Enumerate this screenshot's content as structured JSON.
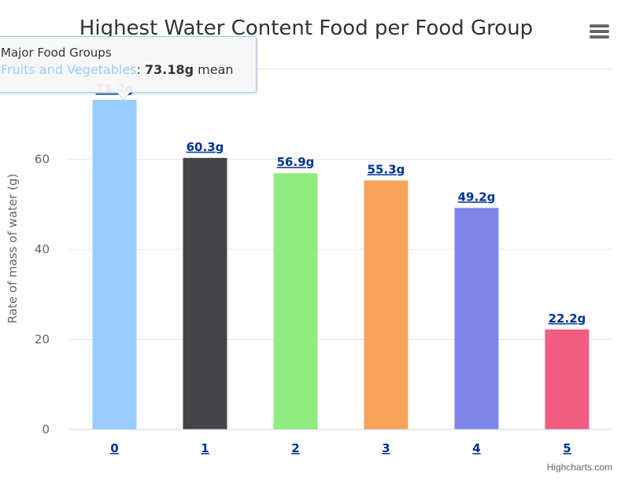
{
  "chart_data": {
    "type": "bar",
    "title": "Highest Water Content Food per Food Group",
    "xlabel": "",
    "ylabel": "Rate of mass of water (g)",
    "categories": [
      "0",
      "1",
      "2",
      "3",
      "4",
      "5"
    ],
    "values": [
      73.2,
      60.3,
      56.9,
      55.3,
      49.2,
      22.2
    ],
    "data_labels": [
      "73.2g",
      "60.3g",
      "56.9g",
      "55.3g",
      "49.2g",
      "22.2g"
    ],
    "colors": [
      "#99ccff",
      "#434348",
      "#90ed7d",
      "#f7a35c",
      "#8085e9",
      "#f15c80"
    ],
    "ylim": [
      0,
      80
    ],
    "yticks": [
      0,
      20,
      40,
      60,
      80
    ],
    "grid": true,
    "legend": "none"
  },
  "tooltip": {
    "header": "Major Food Groups",
    "series_name": "Fruits and Vegetables",
    "separator": ": ",
    "value": "73.18g",
    "suffix": " mean"
  },
  "menu": {
    "icon": "hamburger-menu-icon"
  },
  "credits": "Highcharts.com"
}
